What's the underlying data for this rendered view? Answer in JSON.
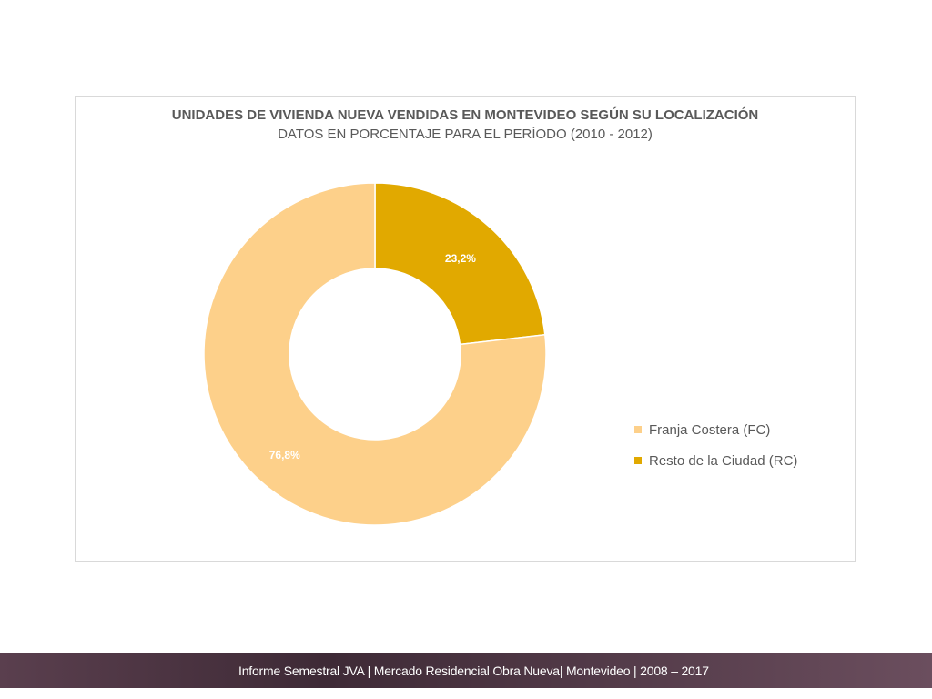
{
  "chart_data": {
    "type": "pie",
    "title": "UNIDADES DE VIVIENDA NUEVA VENDIDAS EN MONTEVIDEO SEGÚN SU LOCALIZACIÓN",
    "subtitle": "DATOS EN PORCENTAJE PARA EL PERÍODO (2010 - 2012)",
    "style": "donut",
    "legend_position": "right",
    "categories": [
      "Franja Costera (FC)",
      "Resto de la Ciudad (RC)"
    ],
    "values": [
      76.8,
      23.2
    ],
    "data_labels": [
      "76,8%",
      "23,2%"
    ],
    "colors": [
      "#fdd08a",
      "#e1a900"
    ]
  },
  "footer": {
    "text": "Informe Semestral JVA | Mercado Residencial Obra Nueva| Montevideo | 2008 – 2017"
  }
}
